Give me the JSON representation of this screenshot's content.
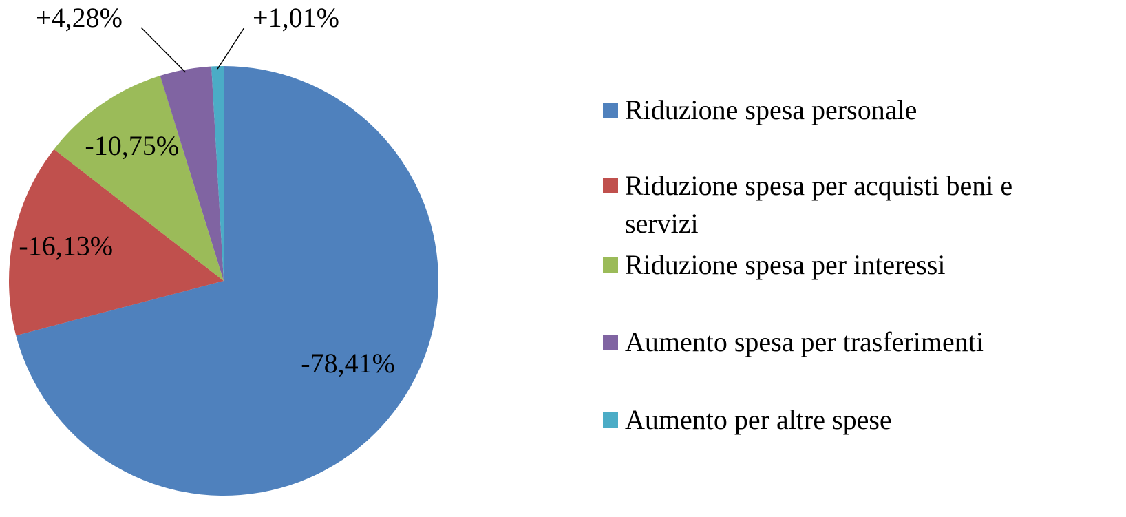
{
  "chart_data": {
    "type": "pie",
    "categories": [
      "Riduzione spesa personale",
      "Riduzione spesa per acquisti beni e servizi",
      "Riduzione spesa per interessi",
      "Aumento spesa per trasferimenti",
      "Aumento per altre spese"
    ],
    "values": [
      -78.41,
      -16.13,
      -10.75,
      4.28,
      1.01
    ],
    "value_labels": [
      "-78,41%",
      "-16,13%",
      "-10,75%",
      "+4,28%",
      "+1,01%"
    ],
    "colors": [
      "#4f81bd",
      "#c0504d",
      "#9bbb59",
      "#8064a2",
      "#4bacc6"
    ],
    "legend": "right"
  }
}
